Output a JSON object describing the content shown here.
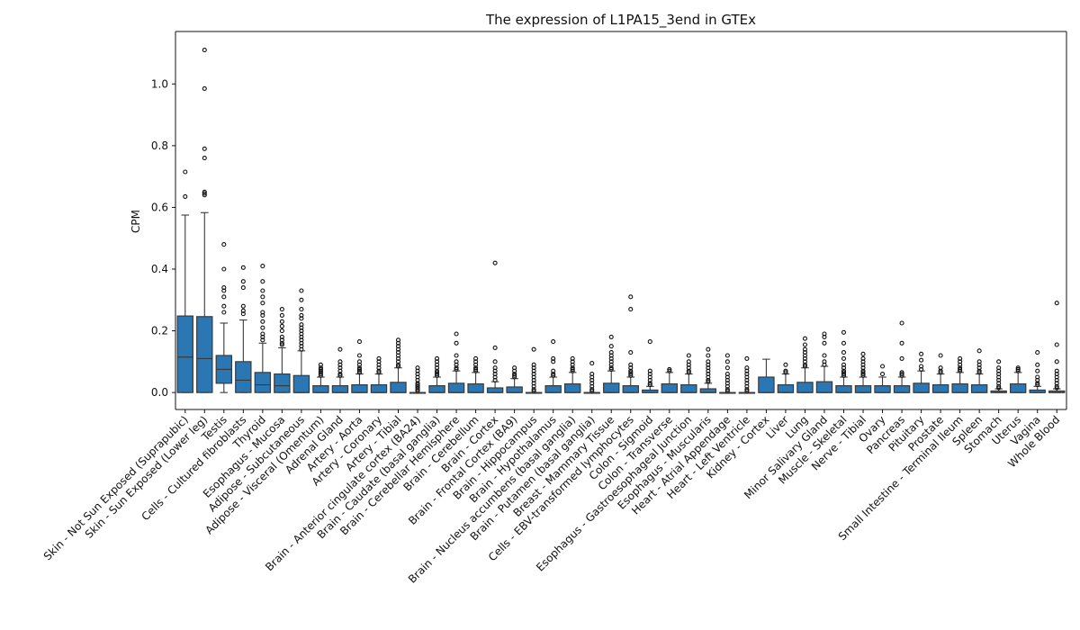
{
  "chart_data": {
    "type": "box",
    "title": "The expression of L1PA15_3end in GTEx",
    "xlabel": "",
    "ylabel": "CPM",
    "ylim": [
      -0.055,
      1.17
    ],
    "yticks": [
      "0.0",
      "0.2",
      "0.4",
      "0.6",
      "0.8",
      "1.0"
    ],
    "grid": false,
    "colors": {
      "box": "#2b77b4",
      "edge": "#3a3a3a",
      "text": "#111111"
    },
    "categories": [
      "Skin - Not Sun Exposed (Suprapubic)",
      "Skin - Sun Exposed (Lower leg)",
      "Testis",
      "Cells - Cultured fibroblasts",
      "Thyroid",
      "Esophagus - Mucosa",
      "Adipose - Subcutaneous",
      "Adipose - Visceral (Omentum)",
      "Adrenal Gland",
      "Artery - Aorta",
      "Artery - Coronary",
      "Artery - Tibial",
      "Brain - Anterior cingulate cortex (BA24)",
      "Brain - Caudate (basal ganglia)",
      "Brain - Cerebellar Hemisphere",
      "Brain - Cerebellum",
      "Brain - Cortex",
      "Brain - Frontal Cortex (BA9)",
      "Brain - Hippocampus",
      "Brain - Hypothalamus",
      "Brain - Nucleus accumbens (basal ganglia)",
      "Brain - Putamen (basal ganglia)",
      "Breast - Mammary Tissue",
      "Cells - EBV-transformed lymphocytes",
      "Colon - Sigmoid",
      "Colon - Transverse",
      "Esophagus - Gastroesophageal Junction",
      "Esophagus - Muscularis",
      "Heart - Atrial Appendage",
      "Heart - Left Ventricle",
      "Kidney - Cortex",
      "Liver",
      "Lung",
      "Minor Salivary Gland",
      "Muscle - Skeletal",
      "Nerve - Tibial",
      "Ovary",
      "Pancreas",
      "Pituitary",
      "Prostate",
      "Small Intestine - Terminal Ileum",
      "Spleen",
      "Stomach",
      "Uterus",
      "Vagina",
      "Whole Blood"
    ],
    "boxes": [
      {
        "q1": 0.0,
        "median": 0.115,
        "q3": 0.248,
        "whislo": 0.0,
        "whishi": 0.575,
        "outliers": [
          0.635,
          0.715
        ]
      },
      {
        "q1": 0.0,
        "median": 0.11,
        "q3": 0.246,
        "whislo": 0.0,
        "whishi": 0.583,
        "outliers": [
          0.64,
          0.645,
          0.65,
          0.76,
          0.79,
          0.985,
          1.11
        ]
      },
      {
        "q1": 0.03,
        "median": 0.075,
        "q3": 0.12,
        "whislo": 0.0,
        "whishi": 0.225,
        "outliers": [
          0.26,
          0.28,
          0.31,
          0.33,
          0.34,
          0.4,
          0.48
        ]
      },
      {
        "q1": 0.0,
        "median": 0.04,
        "q3": 0.1,
        "whislo": 0.0,
        "whishi": 0.235,
        "outliers": [
          0.255,
          0.265,
          0.28,
          0.34,
          0.36,
          0.405
        ]
      },
      {
        "q1": 0.0,
        "median": 0.025,
        "q3": 0.065,
        "whislo": 0.0,
        "whishi": 0.16,
        "outliers": [
          0.17,
          0.18,
          0.19,
          0.21,
          0.23,
          0.25,
          0.26,
          0.29,
          0.31,
          0.33,
          0.36,
          0.41
        ]
      },
      {
        "q1": 0.0,
        "median": 0.022,
        "q3": 0.06,
        "whislo": 0.0,
        "whishi": 0.145,
        "outliers": [
          0.155,
          0.16,
          0.17,
          0.18,
          0.2,
          0.215,
          0.23,
          0.25,
          0.27
        ]
      },
      {
        "q1": 0.0,
        "median": 0.0,
        "q3": 0.055,
        "whislo": 0.0,
        "whishi": 0.135,
        "outliers": [
          0.14,
          0.15,
          0.16,
          0.17,
          0.18,
          0.19,
          0.2,
          0.21,
          0.22,
          0.24,
          0.25,
          0.27,
          0.3,
          0.33
        ]
      },
      {
        "q1": 0.0,
        "median": 0.0,
        "q3": 0.022,
        "whislo": 0.0,
        "whishi": 0.05,
        "outliers": [
          0.055,
          0.06,
          0.065,
          0.07,
          0.075,
          0.08,
          0.09
        ]
      },
      {
        "q1": 0.0,
        "median": 0.0,
        "q3": 0.022,
        "whislo": 0.0,
        "whishi": 0.05,
        "outliers": [
          0.055,
          0.06,
          0.07,
          0.08,
          0.09,
          0.1,
          0.14
        ]
      },
      {
        "q1": 0.0,
        "median": 0.0,
        "q3": 0.025,
        "whislo": 0.0,
        "whishi": 0.06,
        "outliers": [
          0.065,
          0.07,
          0.075,
          0.08,
          0.09,
          0.1,
          0.12,
          0.165
        ]
      },
      {
        "q1": 0.0,
        "median": 0.0,
        "q3": 0.025,
        "whislo": 0.0,
        "whishi": 0.06,
        "outliers": [
          0.065,
          0.07,
          0.08,
          0.09,
          0.1,
          0.11
        ]
      },
      {
        "q1": 0.0,
        "median": 0.0,
        "q3": 0.033,
        "whislo": 0.0,
        "whishi": 0.08,
        "outliers": [
          0.085,
          0.09,
          0.1,
          0.11,
          0.12,
          0.13,
          0.14,
          0.15,
          0.16,
          0.17
        ]
      },
      {
        "q1": 0.0,
        "median": 0.0,
        "q3": 0.0,
        "whislo": 0.0,
        "whishi": 0.0,
        "outliers": [
          0.005,
          0.01,
          0.015,
          0.02,
          0.025,
          0.03,
          0.04,
          0.05,
          0.06,
          0.07,
          0.08
        ]
      },
      {
        "q1": 0.0,
        "median": 0.0,
        "q3": 0.022,
        "whislo": 0.0,
        "whishi": 0.05,
        "outliers": [
          0.055,
          0.06,
          0.065,
          0.07,
          0.08,
          0.09,
          0.1,
          0.11
        ]
      },
      {
        "q1": 0.0,
        "median": 0.0,
        "q3": 0.03,
        "whislo": 0.0,
        "whishi": 0.07,
        "outliers": [
          0.075,
          0.08,
          0.09,
          0.1,
          0.12,
          0.16,
          0.19
        ]
      },
      {
        "q1": 0.0,
        "median": 0.0,
        "q3": 0.028,
        "whislo": 0.0,
        "whishi": 0.065,
        "outliers": [
          0.07,
          0.075,
          0.08,
          0.09,
          0.1,
          0.11
        ]
      },
      {
        "q1": 0.0,
        "median": 0.0,
        "q3": 0.015,
        "whislo": 0.0,
        "whishi": 0.035,
        "outliers": [
          0.04,
          0.05,
          0.06,
          0.07,
          0.08,
          0.1,
          0.145,
          0.42
        ]
      },
      {
        "q1": 0.0,
        "median": 0.0,
        "q3": 0.018,
        "whislo": 0.0,
        "whishi": 0.045,
        "outliers": [
          0.05,
          0.055,
          0.06,
          0.07,
          0.08
        ]
      },
      {
        "q1": 0.0,
        "median": 0.0,
        "q3": 0.0,
        "whislo": 0.0,
        "whishi": 0.0,
        "outliers": [
          0.005,
          0.01,
          0.02,
          0.03,
          0.04,
          0.05,
          0.06,
          0.07,
          0.08,
          0.09,
          0.14
        ]
      },
      {
        "q1": 0.0,
        "median": 0.0,
        "q3": 0.022,
        "whislo": 0.0,
        "whishi": 0.05,
        "outliers": [
          0.055,
          0.06,
          0.07,
          0.1,
          0.11,
          0.165
        ]
      },
      {
        "q1": 0.0,
        "median": 0.0,
        "q3": 0.028,
        "whislo": 0.0,
        "whishi": 0.065,
        "outliers": [
          0.07,
          0.075,
          0.08,
          0.09,
          0.1,
          0.11
        ]
      },
      {
        "q1": 0.0,
        "median": 0.0,
        "q3": 0.0,
        "whislo": 0.0,
        "whishi": 0.0,
        "outliers": [
          0.005,
          0.01,
          0.02,
          0.03,
          0.04,
          0.05,
          0.06,
          0.095
        ]
      },
      {
        "q1": 0.0,
        "median": 0.0,
        "q3": 0.03,
        "whislo": 0.0,
        "whishi": 0.07,
        "outliers": [
          0.075,
          0.08,
          0.09,
          0.1,
          0.11,
          0.12,
          0.13,
          0.15,
          0.18
        ]
      },
      {
        "q1": 0.0,
        "median": 0.0,
        "q3": 0.022,
        "whislo": 0.0,
        "whishi": 0.05,
        "outliers": [
          0.055,
          0.06,
          0.065,
          0.07,
          0.08,
          0.09,
          0.13,
          0.27,
          0.31
        ]
      },
      {
        "q1": 0.0,
        "median": 0.0,
        "q3": 0.008,
        "whislo": 0.0,
        "whishi": 0.02,
        "outliers": [
          0.025,
          0.03,
          0.04,
          0.05,
          0.06,
          0.07,
          0.165
        ]
      },
      {
        "q1": 0.0,
        "median": 0.0,
        "q3": 0.028,
        "whislo": 0.0,
        "whishi": 0.065,
        "outliers": [
          0.07,
          0.075
        ]
      },
      {
        "q1": 0.0,
        "median": 0.0,
        "q3": 0.025,
        "whislo": 0.0,
        "whishi": 0.06,
        "outliers": [
          0.065,
          0.07,
          0.08,
          0.09,
          0.1,
          0.12
        ]
      },
      {
        "q1": 0.0,
        "median": 0.0,
        "q3": 0.012,
        "whislo": 0.0,
        "whishi": 0.03,
        "outliers": [
          0.035,
          0.04,
          0.05,
          0.06,
          0.07,
          0.08,
          0.09,
          0.1,
          0.12,
          0.14
        ]
      },
      {
        "q1": 0.0,
        "median": 0.0,
        "q3": 0.0,
        "whislo": 0.0,
        "whishi": 0.0,
        "outliers": [
          0.005,
          0.01,
          0.02,
          0.03,
          0.04,
          0.05,
          0.06,
          0.08,
          0.1,
          0.12
        ]
      },
      {
        "q1": 0.0,
        "median": 0.0,
        "q3": 0.0,
        "whislo": 0.0,
        "whishi": 0.0,
        "outliers": [
          0.005,
          0.01,
          0.02,
          0.03,
          0.04,
          0.05,
          0.06,
          0.07,
          0.08,
          0.11
        ]
      },
      {
        "q1": 0.0,
        "median": 0.0,
        "q3": 0.05,
        "whislo": 0.0,
        "whishi": 0.108,
        "outliers": []
      },
      {
        "q1": 0.0,
        "median": 0.0,
        "q3": 0.025,
        "whislo": 0.0,
        "whishi": 0.06,
        "outliers": [
          0.065,
          0.07,
          0.09
        ]
      },
      {
        "q1": 0.0,
        "median": 0.0,
        "q3": 0.033,
        "whislo": 0.0,
        "whishi": 0.08,
        "outliers": [
          0.085,
          0.09,
          0.1,
          0.11,
          0.12,
          0.13,
          0.14,
          0.155,
          0.175
        ]
      },
      {
        "q1": 0.0,
        "median": 0.0,
        "q3": 0.035,
        "whislo": 0.0,
        "whishi": 0.085,
        "outliers": [
          0.09,
          0.1,
          0.12,
          0.16,
          0.18,
          0.19
        ]
      },
      {
        "q1": 0.0,
        "median": 0.0,
        "q3": 0.022,
        "whislo": 0.0,
        "whishi": 0.05,
        "outliers": [
          0.055,
          0.06,
          0.065,
          0.07,
          0.08,
          0.09,
          0.11,
          0.13,
          0.16,
          0.195
        ]
      },
      {
        "q1": 0.0,
        "median": 0.0,
        "q3": 0.022,
        "whislo": 0.0,
        "whishi": 0.05,
        "outliers": [
          0.055,
          0.06,
          0.065,
          0.07,
          0.08,
          0.09,
          0.1,
          0.11,
          0.125
        ]
      },
      {
        "q1": 0.0,
        "median": 0.0,
        "q3": 0.022,
        "whislo": 0.0,
        "whishi": 0.05,
        "outliers": [
          0.06,
          0.085
        ]
      },
      {
        "q1": 0.0,
        "median": 0.0,
        "q3": 0.022,
        "whislo": 0.0,
        "whishi": 0.05,
        "outliers": [
          0.055,
          0.06,
          0.065,
          0.11,
          0.16,
          0.225
        ]
      },
      {
        "q1": 0.0,
        "median": 0.0,
        "q3": 0.03,
        "whislo": 0.0,
        "whishi": 0.07,
        "outliers": [
          0.075,
          0.085,
          0.105,
          0.125
        ]
      },
      {
        "q1": 0.0,
        "median": 0.0,
        "q3": 0.025,
        "whislo": 0.0,
        "whishi": 0.06,
        "outliers": [
          0.065,
          0.07,
          0.08,
          0.12
        ]
      },
      {
        "q1": 0.0,
        "median": 0.0,
        "q3": 0.028,
        "whislo": 0.0,
        "whishi": 0.065,
        "outliers": [
          0.07,
          0.075,
          0.08,
          0.09,
          0.1,
          0.11
        ]
      },
      {
        "q1": 0.0,
        "median": 0.0,
        "q3": 0.025,
        "whislo": 0.0,
        "whishi": 0.06,
        "outliers": [
          0.065,
          0.07,
          0.08,
          0.09,
          0.1,
          0.135
        ]
      },
      {
        "q1": 0.0,
        "median": 0.0,
        "q3": 0.005,
        "whislo": 0.0,
        "whishi": 0.012,
        "outliers": [
          0.015,
          0.02,
          0.03,
          0.04,
          0.05,
          0.06,
          0.07,
          0.08,
          0.1
        ]
      },
      {
        "q1": 0.0,
        "median": 0.0,
        "q3": 0.028,
        "whislo": 0.0,
        "whishi": 0.065,
        "outliers": [
          0.07,
          0.075,
          0.08
        ]
      },
      {
        "q1": 0.0,
        "median": 0.0,
        "q3": 0.008,
        "whislo": 0.0,
        "whishi": 0.02,
        "outliers": [
          0.025,
          0.03,
          0.04,
          0.05,
          0.07,
          0.09,
          0.13
        ]
      },
      {
        "q1": 0.0,
        "median": 0.0,
        "q3": 0.005,
        "whislo": 0.0,
        "whishi": 0.012,
        "outliers": [
          0.015,
          0.02,
          0.03,
          0.04,
          0.05,
          0.06,
          0.07,
          0.1,
          0.155,
          0.29
        ]
      }
    ]
  }
}
